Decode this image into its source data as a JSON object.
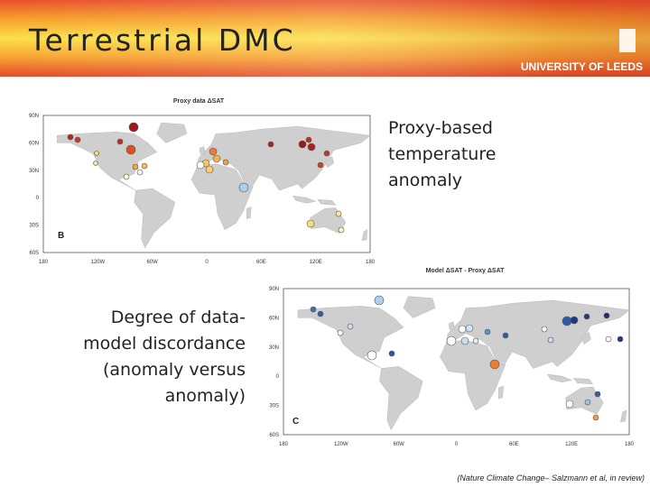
{
  "header": {
    "title": "Terrestrial DMC",
    "logo": "UNIVERSITY OF LEEDS"
  },
  "figures": [
    {
      "title": "Proxy data ΔSAT",
      "panel": "B",
      "lat_labels": [
        "90N",
        "60N",
        "30N",
        "0",
        "30S",
        "60S"
      ],
      "lon_labels": [
        "180",
        "120W",
        "60W",
        "0",
        "60E",
        "120E",
        "180"
      ]
    },
    {
      "title": "Model ΔSAT - Proxy ΔSAT",
      "panel": "C",
      "lat_labels": [
        "90N",
        "60N",
        "30N",
        "0",
        "30S",
        "60S"
      ],
      "lon_labels": [
        "180",
        "120W",
        "60W",
        "0",
        "60E",
        "120E",
        "180"
      ]
    }
  ],
  "captions": {
    "proxy": [
      "Proxy-based",
      "temperature",
      "anomaly"
    ],
    "discordance": [
      "Degree of data-",
      "model discordance",
      "(anomaly versus",
      "anomaly)"
    ]
  },
  "citation": "(Nature Climate Change– Salzmann et al, in review)"
}
